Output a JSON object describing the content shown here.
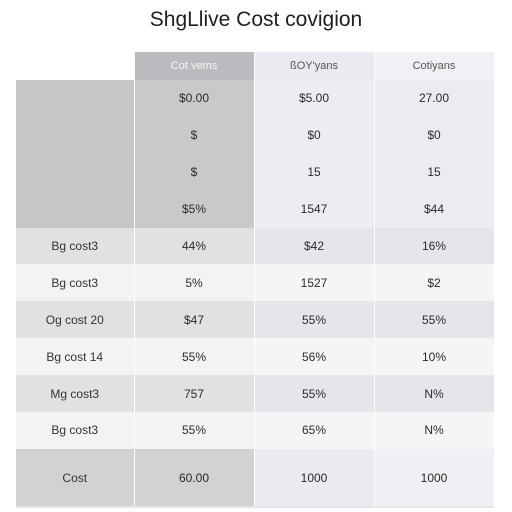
{
  "title": "ShgLlive Cost covigion",
  "chart_data": {
    "type": "table",
    "title": "ShgLlive Cost covigion",
    "columns": [
      "",
      "Cot vems",
      "ßOY'yans",
      "Cotiyans"
    ],
    "rows": [
      [
        "",
        "$0.00",
        "$5.00",
        "27.00"
      ],
      [
        "",
        "$",
        "$0",
        "$0"
      ],
      [
        "",
        "$",
        "15",
        "15"
      ],
      [
        "",
        "$5%",
        "1547",
        "$44"
      ],
      [
        "Bg cost3",
        "44%",
        "$42",
        "16%"
      ],
      [
        "Bg cost3",
        "5%",
        "1527",
        "$2"
      ],
      [
        "Og cost 20",
        "$47",
        "55%",
        "55%"
      ],
      [
        "Bg cost 14",
        "55%",
        "56%",
        "10%"
      ],
      [
        "Mg cost3",
        "757",
        "55%",
        "N%"
      ],
      [
        "Bg cost3",
        "55%",
        "65%",
        "N%"
      ],
      [
        "Cost",
        "60.00",
        "1000",
        "1000"
      ]
    ]
  }
}
